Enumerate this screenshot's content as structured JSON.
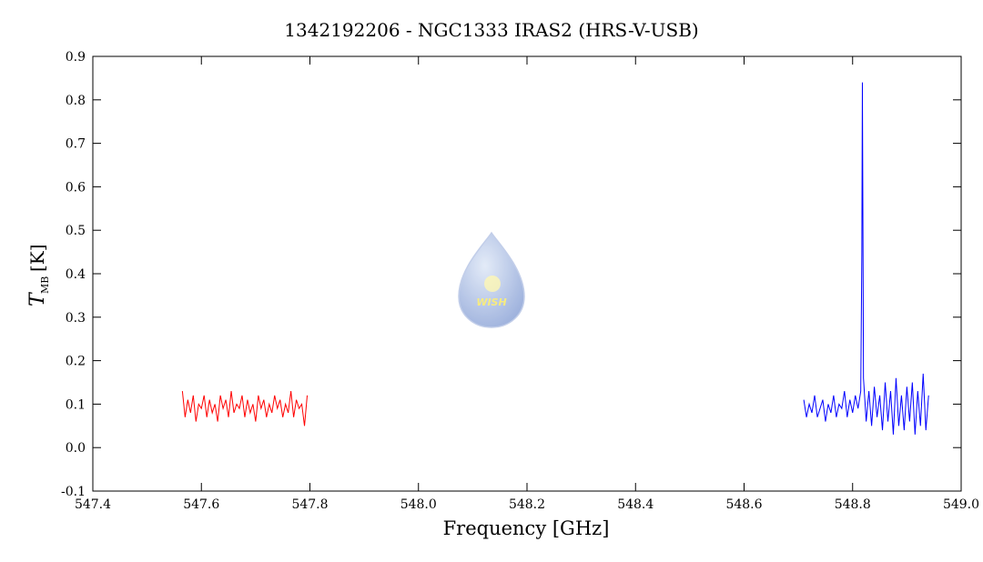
{
  "chart_data": {
    "type": "line",
    "title": "1342192206 - NGC1333 IRAS2 (HRS-V-USB)",
    "x_label": "Frequency [GHz]",
    "y_label": {
      "symbol": "T",
      "subscript": "MB",
      "unit": "[K]"
    },
    "logo_text": "WISH",
    "xlim": [
      547.4,
      549.0
    ],
    "xticks": [
      547.4,
      547.6,
      547.8,
      {
        "value": 548.0,
        "label": "548.0"
      },
      548.2,
      548.4,
      548.6,
      548.8,
      {
        "value": 549.0,
        "label": "549.0"
      }
    ],
    "ylim": [
      -0.1,
      0.9
    ],
    "yticks": [
      -0.1,
      {
        "value": 0.0,
        "label": "0.0"
      },
      0.1,
      0.2,
      0.3,
      0.4,
      0.5,
      0.6,
      0.7,
      0.8,
      0.9
    ],
    "series": [
      {
        "color": "#ff0000",
        "x": [
          547.565,
          547.57,
          547.575,
          547.58,
          547.585,
          547.59,
          547.595,
          547.6,
          547.605,
          547.61,
          547.615,
          547.62,
          547.625,
          547.63,
          547.635,
          547.64,
          547.645,
          547.65,
          547.655,
          547.66,
          547.665,
          547.67,
          547.675,
          547.68,
          547.685,
          547.69,
          547.695,
          547.7,
          547.705,
          547.71,
          547.715,
          547.72,
          547.725,
          547.73,
          547.735,
          547.74,
          547.745,
          547.75,
          547.755,
          547.76,
          547.765,
          547.77,
          547.775,
          547.78,
          547.785,
          547.79,
          547.795
        ],
        "values": [
          0.13,
          0.07,
          0.11,
          0.08,
          0.12,
          0.06,
          0.1,
          0.09,
          0.12,
          0.07,
          0.11,
          0.08,
          0.1,
          0.06,
          0.12,
          0.09,
          0.11,
          0.07,
          0.13,
          0.08,
          0.1,
          0.09,
          0.12,
          0.07,
          0.11,
          0.08,
          0.1,
          0.06,
          0.12,
          0.09,
          0.11,
          0.07,
          0.1,
          0.08,
          0.12,
          0.09,
          0.11,
          0.07,
          0.1,
          0.08,
          0.13,
          0.07,
          0.11,
          0.09,
          0.1,
          0.05,
          0.12
        ]
      },
      {
        "color": "#0000ff",
        "x": [
          548.71,
          548.715,
          548.72,
          548.725,
          548.73,
          548.735,
          548.74,
          548.745,
          548.75,
          548.755,
          548.76,
          548.765,
          548.77,
          548.775,
          548.78,
          548.785,
          548.79,
          548.795,
          548.8,
          548.805,
          548.81,
          548.815,
          548.817,
          548.818,
          548.819,
          548.82,
          548.825,
          548.83,
          548.835,
          548.84,
          548.845,
          548.85,
          548.855,
          548.86,
          548.865,
          548.87,
          548.875,
          548.88,
          548.885,
          548.89,
          548.895,
          548.9,
          548.905,
          548.91,
          548.915,
          548.92,
          548.925,
          548.93,
          548.935,
          548.94
        ],
        "values": [
          0.11,
          0.07,
          0.1,
          0.08,
          0.12,
          0.07,
          0.09,
          0.11,
          0.06,
          0.1,
          0.08,
          0.12,
          0.07,
          0.1,
          0.09,
          0.13,
          0.07,
          0.11,
          0.08,
          0.12,
          0.09,
          0.13,
          0.45,
          0.84,
          0.51,
          0.16,
          0.06,
          0.13,
          0.05,
          0.14,
          0.07,
          0.12,
          0.04,
          0.15,
          0.06,
          0.13,
          0.03,
          0.16,
          0.05,
          0.12,
          0.04,
          0.14,
          0.06,
          0.15,
          0.03,
          0.13,
          0.05,
          0.17,
          0.04,
          0.12
        ]
      }
    ]
  }
}
